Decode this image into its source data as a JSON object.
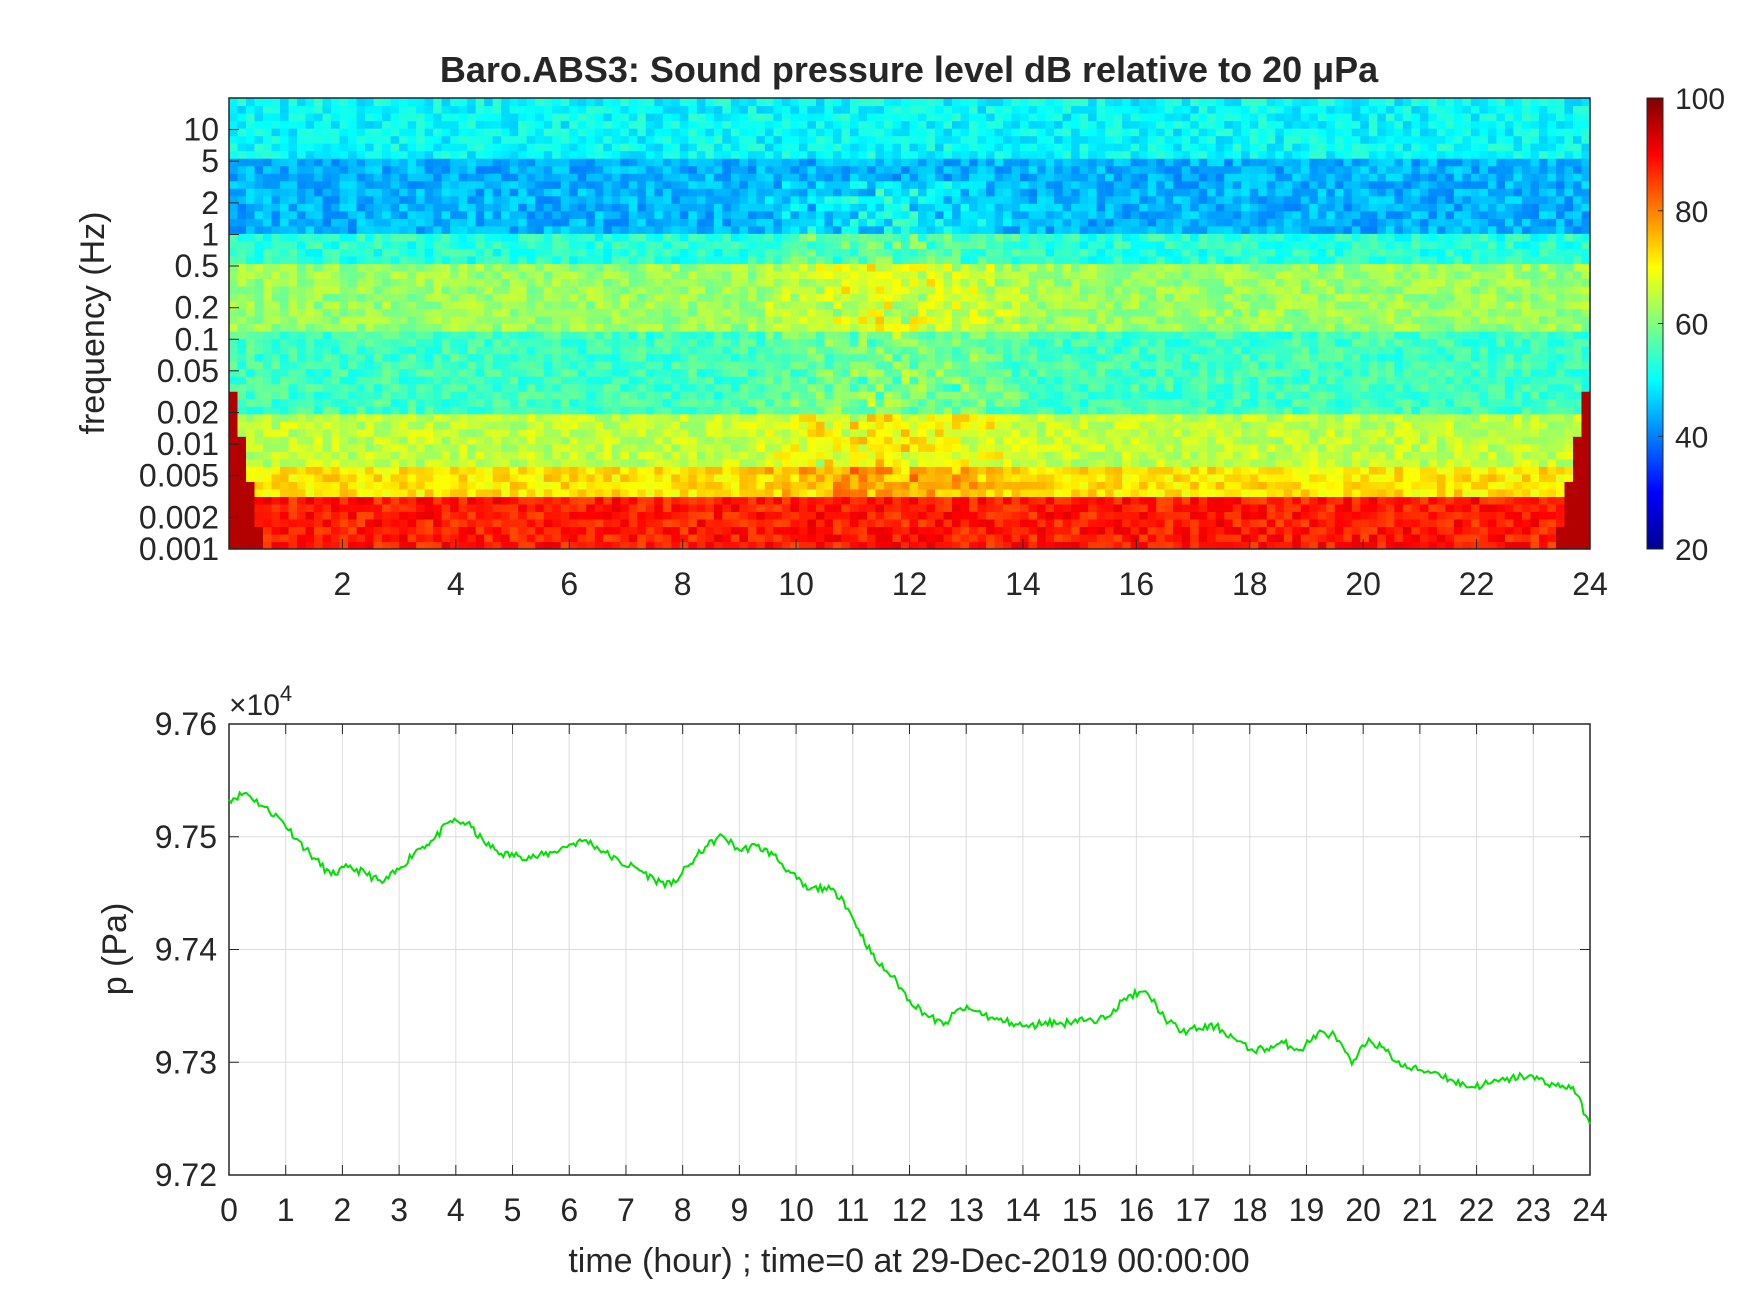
{
  "chart_data": [
    {
      "type": "heatmap",
      "title": "Baro.ABS3: Sound pressure level dB relative to 20 μPa",
      "xlabel": "",
      "ylabel": "frequency (Hz)",
      "xlim": [
        0,
        24
      ],
      "x_ticks": [
        "2",
        "4",
        "6",
        "8",
        "10",
        "12",
        "14",
        "16",
        "18",
        "20",
        "22",
        "24"
      ],
      "y_scale": "log",
      "ylim": [
        0.001,
        20
      ],
      "y_ticks": [
        "0.001",
        "0.002",
        "0.005",
        "0.01",
        "0.02",
        "0.05",
        "0.1",
        "0.2",
        "0.5",
        "1",
        "2",
        "5",
        "10"
      ],
      "colorbar": {
        "colormap": "jet",
        "range": [
          20,
          100
        ],
        "ticks": [
          "20",
          "40",
          "60",
          "80",
          "100"
        ]
      },
      "bands": [
        {
          "f": [
            5,
            20
          ],
          "db": 50
        },
        {
          "f": [
            1,
            5
          ],
          "db": 44
        },
        {
          "f": [
            0.5,
            1
          ],
          "db": 53
        },
        {
          "f": [
            0.12,
            0.5
          ],
          "db": 62
        },
        {
          "f": [
            0.02,
            0.12
          ],
          "db": 55
        },
        {
          "f": [
            0.006,
            0.02
          ],
          "db": 65
        },
        {
          "f": [
            0.003,
            0.006
          ],
          "db": 72
        },
        {
          "f": [
            0.001,
            0.003
          ],
          "db": 88
        }
      ],
      "active_period_hours": [
        9,
        14.5
      ],
      "active_extra_db": 10,
      "grid": false
    },
    {
      "type": "line",
      "title": "",
      "xlabel": "time (hour) ; time=0 at 29-Dec-2019 00:00:00",
      "ylabel": "p (Pa)",
      "y_multiplier": "×10",
      "y_multiplier_exp": "4",
      "xlim": [
        0,
        24
      ],
      "ylim": [
        9.72,
        9.76
      ],
      "x_ticks": [
        "0",
        "1",
        "2",
        "3",
        "4",
        "5",
        "6",
        "7",
        "8",
        "9",
        "10",
        "11",
        "12",
        "13",
        "14",
        "15",
        "16",
        "17",
        "18",
        "19",
        "20",
        "21",
        "22",
        "23",
        "24"
      ],
      "y_ticks": [
        "9.72",
        "9.73",
        "9.74",
        "9.75",
        "9.76"
      ],
      "grid": true,
      "line_color": "#00e000",
      "series": [
        {
          "x": [
            0,
            0.3,
            0.6,
            0.9,
            1.2,
            1.5,
            1.8,
            2.1,
            2.4,
            2.7,
            3.0,
            3.3,
            3.6,
            3.9,
            4.2,
            4.5,
            4.8,
            5.1,
            5.4,
            5.7,
            6.0,
            6.3,
            6.6,
            6.9,
            7.2,
            7.5,
            7.8,
            8.1,
            8.4,
            8.7,
            9.0,
            9.3,
            9.6,
            9.9,
            10.2,
            10.5,
            10.8,
            11.1,
            11.4,
            11.7,
            12.0,
            12.3,
            12.6,
            12.9,
            13.2,
            13.5,
            13.8,
            14.1,
            14.4,
            14.7,
            15.0,
            15.3,
            15.6,
            15.9,
            16.2,
            16.5,
            16.8,
            17.1,
            17.4,
            17.7,
            18.0,
            18.3,
            18.6,
            18.9,
            19.2,
            19.5,
            19.8,
            20.1,
            20.4,
            20.7,
            21.0,
            21.3,
            21.6,
            21.9,
            22.2,
            22.5,
            22.8,
            23.1,
            23.4,
            23.7,
            24.0
          ],
          "y": [
            9.7533,
            9.7539,
            9.7527,
            9.7516,
            9.7498,
            9.7481,
            9.7466,
            9.7473,
            9.7468,
            9.7459,
            9.7471,
            9.7488,
            9.7497,
            9.7514,
            9.7512,
            9.7495,
            9.7485,
            9.7483,
            9.7482,
            9.7486,
            9.7493,
            9.7497,
            9.7487,
            9.7477,
            9.7472,
            9.7462,
            9.7457,
            9.7474,
            9.7491,
            9.7501,
            9.7488,
            9.7492,
            9.7484,
            9.7468,
            9.7453,
            9.7455,
            9.7447,
            9.7418,
            9.739,
            9.7376,
            9.7355,
            9.7342,
            9.7333,
            9.7348,
            9.7345,
            9.7338,
            9.7335,
            9.7331,
            9.7336,
            9.7334,
            9.7339,
            9.7335,
            9.7347,
            9.736,
            9.7361,
            9.7339,
            9.7327,
            9.733,
            9.7332,
            9.7322,
            9.7311,
            9.7312,
            9.7317,
            9.7311,
            9.7326,
            9.7324,
            9.7298,
            9.7321,
            9.731,
            9.7296,
            9.7293,
            9.7291,
            9.7283,
            9.7278,
            9.7281,
            9.7284,
            9.7288,
            9.7285,
            9.7279,
            9.7278,
            9.7245
          ]
        }
      ]
    }
  ]
}
